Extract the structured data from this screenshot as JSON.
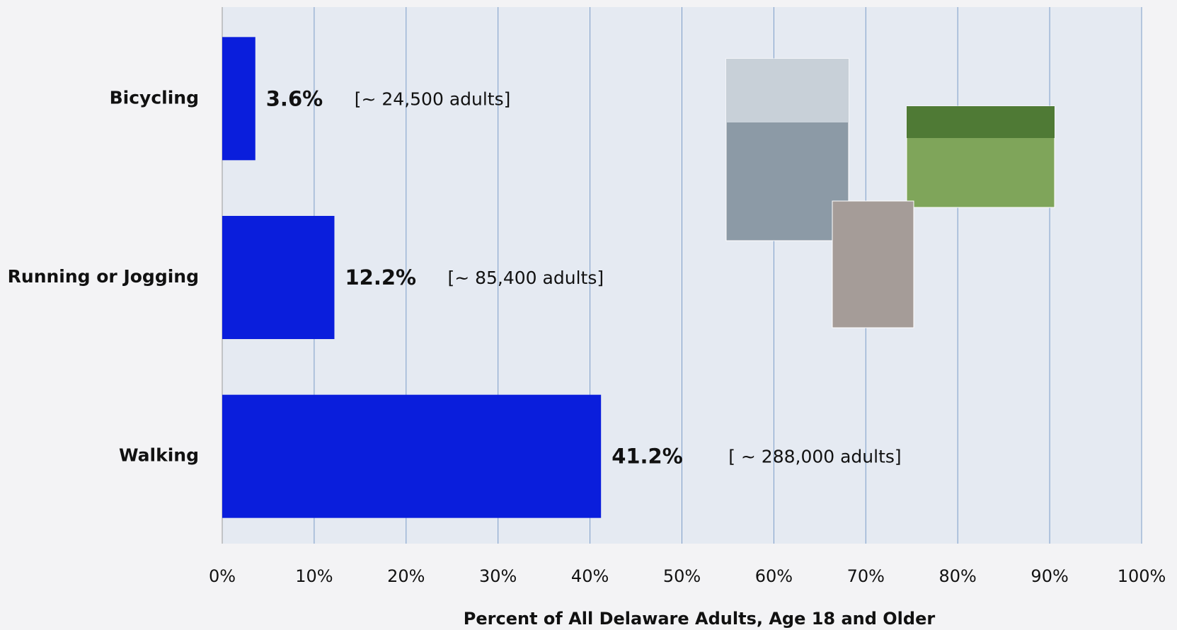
{
  "chart_data": {
    "type": "hbar",
    "categories": [
      "Bicycling",
      "Running or Jogging",
      "Walking"
    ],
    "values": [
      3.6,
      12.2,
      41.2
    ],
    "value_labels": [
      "3.6%",
      "12.2%",
      "41.2%"
    ],
    "annotations": [
      "[~ 24,500 adults]",
      "[~ 85,400 adults]",
      "[ ~ 288,000 adults]"
    ],
    "color": "#0a1edc",
    "xlabel": "Percent of All Delaware Adults, Age 18 and Older",
    "xlim": [
      0,
      100
    ],
    "xticks": [
      {
        "value": 0,
        "label": "0%"
      },
      {
        "value": 10,
        "label": "10%"
      },
      {
        "value": 20,
        "label": "20%"
      },
      {
        "value": 30,
        "label": "30%"
      },
      {
        "value": 40,
        "label": "40%"
      },
      {
        "value": 50,
        "label": "50%"
      },
      {
        "value": 60,
        "label": "60%"
      },
      {
        "value": 70,
        "label": "70%"
      },
      {
        "value": 80,
        "label": "80%"
      },
      {
        "value": 90,
        "label": "90%"
      },
      {
        "value": 100,
        "label": "100%"
      }
    ],
    "grid": true
  }
}
